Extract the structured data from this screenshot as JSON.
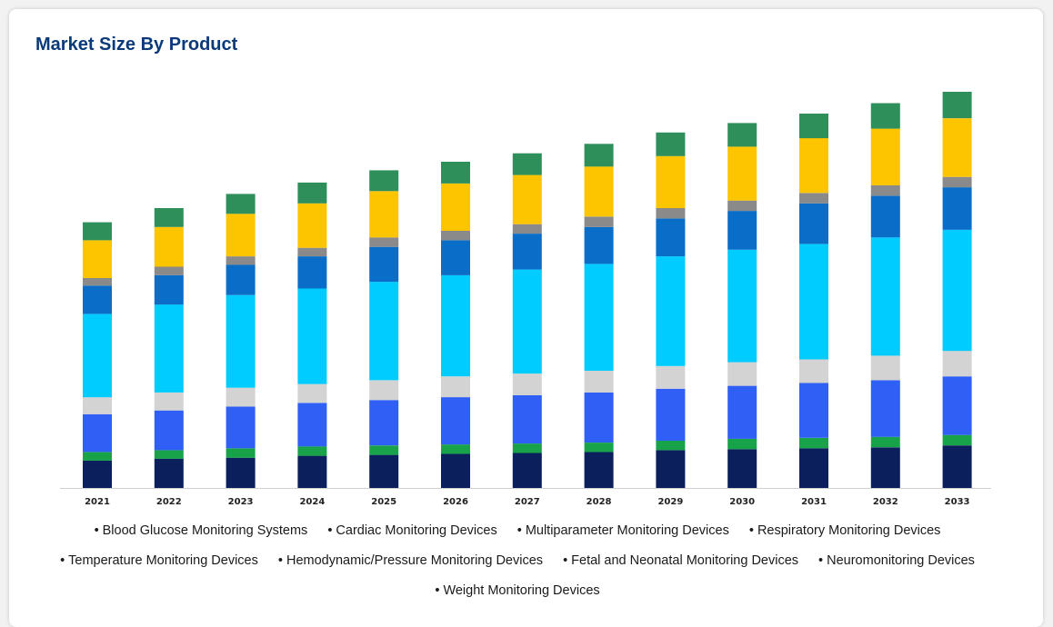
{
  "title": "Market Size By Product",
  "chart_data": {
    "type": "bar",
    "stacked": true,
    "categories": [
      "2021",
      "2022",
      "2023",
      "2024",
      "2025",
      "2026",
      "2027",
      "2028",
      "2029",
      "2030",
      "2031",
      "2032",
      "2033"
    ],
    "ylim": [
      0,
      420
    ],
    "grid": false,
    "legend_position": "bottom",
    "series": [
      {
        "name": "Blood Glucose Monitoring Systems",
        "color": "#0b1f5c",
        "values": [
          29,
          31,
          32,
          34,
          35,
          36,
          37,
          38,
          40,
          41,
          42,
          43,
          45
        ]
      },
      {
        "name": "Cardiac Monitoring Devices",
        "color": "#18a34a",
        "values": [
          9,
          9,
          10,
          10,
          10,
          10,
          10,
          10,
          10,
          11,
          11,
          11,
          11
        ]
      },
      {
        "name": "Multiparameter Monitoring Devices",
        "color": "#2f5ff5",
        "values": [
          40,
          42,
          44,
          46,
          48,
          50,
          51,
          53,
          55,
          56,
          58,
          60,
          62
        ]
      },
      {
        "name": "Respiratory Monitoring Devices",
        "color": "#d3d3d3",
        "values": [
          18,
          19,
          20,
          20,
          21,
          22,
          23,
          23,
          24,
          25,
          25,
          26,
          27
        ]
      },
      {
        "name": "Temperature Monitoring Devices",
        "color": "#00ccff",
        "values": [
          88,
          93,
          98,
          101,
          104,
          107,
          110,
          113,
          116,
          119,
          122,
          125,
          128
        ]
      },
      {
        "name": "Hemodynamic/Pressure Monitoring Devices",
        "color": "#0a6ec8",
        "values": [
          30,
          31,
          32,
          34,
          37,
          37,
          38,
          39,
          40,
          41,
          43,
          44,
          45
        ]
      },
      {
        "name": "Fetal and Neonatal Monitoring Devices",
        "color": "#8a8a8a",
        "values": [
          8,
          9,
          9,
          9,
          10,
          10,
          10,
          11,
          11,
          11,
          11,
          11,
          11
        ]
      },
      {
        "name": "Neuromonitoring Devices",
        "color": "#fdc400",
        "values": [
          40,
          42,
          45,
          47,
          49,
          50,
          52,
          53,
          55,
          57,
          58,
          60,
          62
        ]
      },
      {
        "name": "Weight Monitoring Devices",
        "color": "#2f8f5a",
        "values": [
          19,
          20,
          21,
          22,
          22,
          23,
          23,
          24,
          25,
          25,
          26,
          27,
          28
        ]
      }
    ]
  }
}
